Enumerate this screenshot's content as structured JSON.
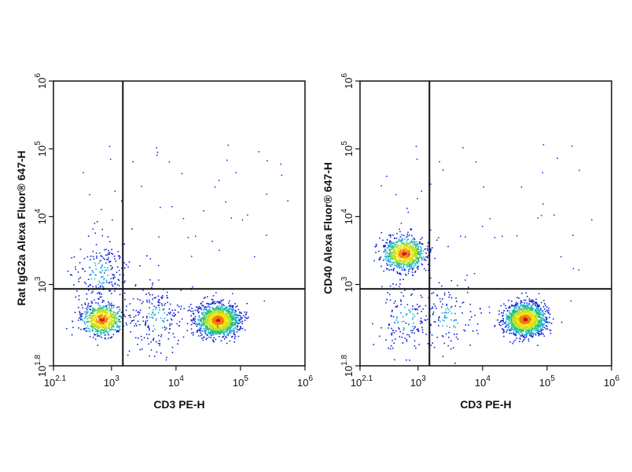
{
  "chart_data": [
    {
      "type": "scatter",
      "plot_style": "pseudocolor density dot plot with quadrant gates",
      "xlabel": "CD3 PE-H",
      "ylabel": "Rat IgG2a Alexa Fluor® 647-H",
      "x_scale": "log",
      "y_scale": "log",
      "xlim": [
        125.9,
        1000000
      ],
      "ylim": [
        63.1,
        1000000
      ],
      "xticks": [
        {
          "value": 125.9,
          "base": "10",
          "exp": "2.1"
        },
        {
          "value": 1000,
          "base": "10",
          "exp": "3"
        },
        {
          "value": 10000,
          "base": "10",
          "exp": "4"
        },
        {
          "value": 100000,
          "base": "10",
          "exp": "5"
        },
        {
          "value": 1000000,
          "base": "10",
          "exp": "6"
        }
      ],
      "yticks": [
        {
          "value": 63.1,
          "base": "10",
          "exp": "1.8"
        },
        {
          "value": 1000,
          "base": "10",
          "exp": "3"
        },
        {
          "value": 10000,
          "base": "10",
          "exp": "4"
        },
        {
          "value": 100000,
          "base": "10",
          "exp": "5"
        },
        {
          "value": 1000000,
          "base": "10",
          "exp": "6"
        }
      ],
      "gates": {
        "x": 1500,
        "y": 860
      },
      "populations": [
        {
          "name": "",
          "x_center": 700,
          "y_center": 310,
          "events": 700,
          "density": "high"
        },
        {
          "name": "",
          "x_center": 44000,
          "y_center": 300,
          "events": 1400,
          "density": "high"
        },
        {
          "name": "",
          "x_center": 650,
          "y_center": 1500,
          "events": 200,
          "density": "low"
        },
        {
          "name": "",
          "x_center": 5000,
          "y_center": 320,
          "events": 200,
          "density": "low"
        }
      ],
      "grid": false,
      "legend": "none"
    },
    {
      "type": "scatter",
      "plot_style": "pseudocolor density dot plot with quadrant gates",
      "xlabel": "CD3 PE-H",
      "ylabel": "CD40 Alexa Fluor® 647-H",
      "x_scale": "log",
      "y_scale": "log",
      "xlim": [
        125.9,
        1000000
      ],
      "ylim": [
        63.1,
        1000000
      ],
      "xticks": [
        {
          "value": 125.9,
          "base": "10",
          "exp": "2.1"
        },
        {
          "value": 1000,
          "base": "10",
          "exp": "3"
        },
        {
          "value": 10000,
          "base": "10",
          "exp": "4"
        },
        {
          "value": 100000,
          "base": "10",
          "exp": "5"
        },
        {
          "value": 1000000,
          "base": "10",
          "exp": "6"
        }
      ],
      "yticks": [
        {
          "value": 63.1,
          "base": "10",
          "exp": "1.8"
        },
        {
          "value": 1000,
          "base": "10",
          "exp": "3"
        },
        {
          "value": 10000,
          "base": "10",
          "exp": "4"
        },
        {
          "value": 100000,
          "base": "10",
          "exp": "5"
        },
        {
          "value": 1000000,
          "base": "10",
          "exp": "6"
        }
      ],
      "gates": {
        "x": 1500,
        "y": 860
      },
      "populations": [
        {
          "name": "",
          "x_center": 600,
          "y_center": 2900,
          "events": 900,
          "density": "high"
        },
        {
          "name": "",
          "x_center": 45000,
          "y_center": 310,
          "events": 1400,
          "density": "high"
        },
        {
          "name": "",
          "x_center": 620,
          "y_center": 320,
          "events": 150,
          "density": "low"
        },
        {
          "name": "",
          "x_center": 3000,
          "y_center": 320,
          "events": 120,
          "density": "low"
        }
      ],
      "grid": false,
      "legend": "none"
    }
  ],
  "colors": {
    "frame": "#111111",
    "gate_line": "#111111",
    "density_scale": [
      "#0a1fd6",
      "#1ca9e0",
      "#22c07a",
      "#b6e11f",
      "#f4e10f",
      "#f07a10",
      "#d01010"
    ]
  }
}
